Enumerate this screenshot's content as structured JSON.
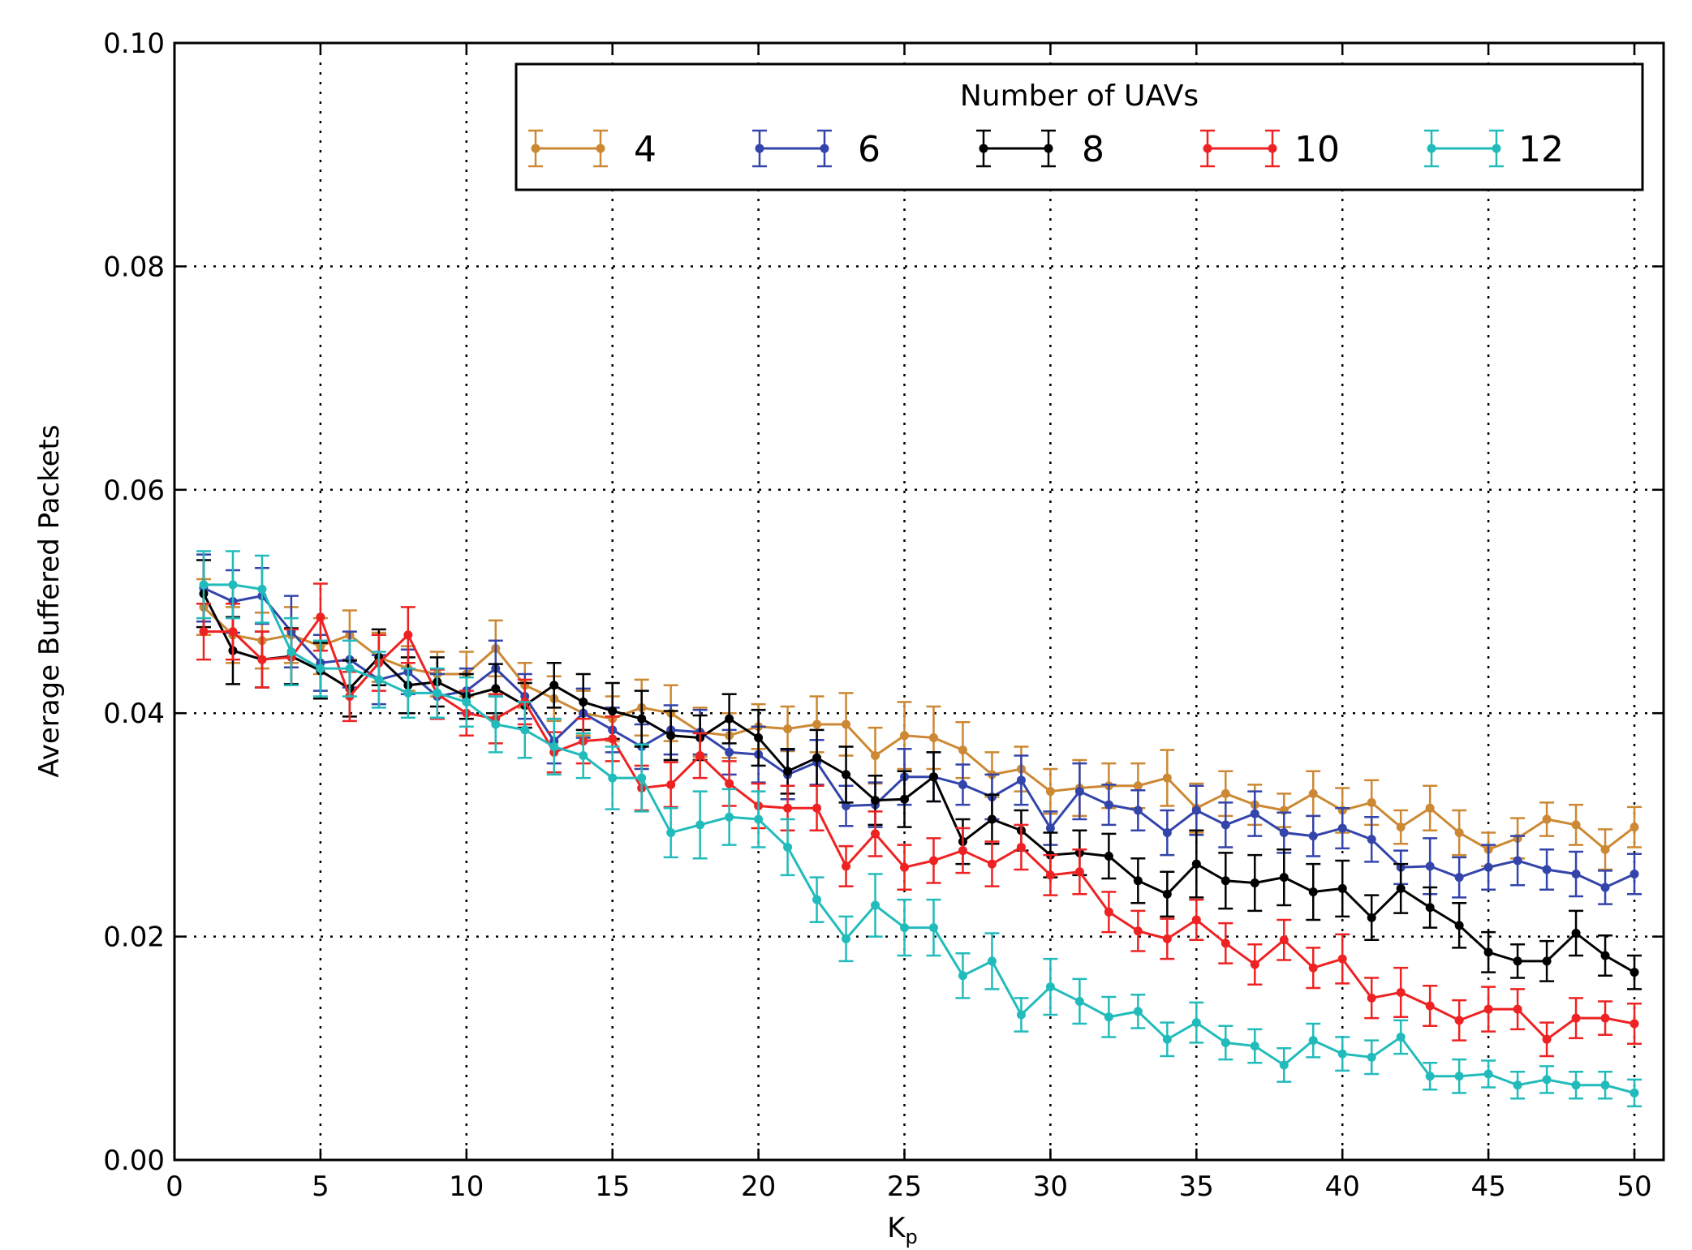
{
  "chart_data": {
    "type": "line",
    "xlabel": "K",
    "xlabel_subscript": "p",
    "ylabel": "Average Buffered Packets",
    "xlim": [
      0,
      51
    ],
    "ylim": [
      0,
      0.1
    ],
    "xticks": [
      0,
      5,
      10,
      15,
      20,
      25,
      30,
      35,
      40,
      45,
      50
    ],
    "yticks": [
      0,
      0.02,
      0.04,
      0.06,
      0.08,
      0.1
    ],
    "xtick_labels": [
      "0",
      "5",
      "10",
      "15",
      "20",
      "25",
      "30",
      "35",
      "40",
      "45",
      "50"
    ],
    "ytick_labels": [
      "0.00",
      "0.02",
      "0.04",
      "0.06",
      "0.08",
      "0.10"
    ],
    "grid": true,
    "legend": {
      "title": "Number of UAVs",
      "placement": "top-right"
    },
    "x": [
      1,
      2,
      3,
      4,
      5,
      6,
      7,
      8,
      9,
      10,
      11,
      12,
      13,
      14,
      15,
      16,
      17,
      18,
      19,
      20,
      21,
      22,
      23,
      24,
      25,
      26,
      27,
      28,
      29,
      30,
      31,
      32,
      33,
      34,
      35,
      36,
      37,
      38,
      39,
      40,
      41,
      42,
      43,
      44,
      45,
      46,
      47,
      48,
      49,
      50
    ],
    "series": [
      {
        "name": "4",
        "color": "#cc8833",
        "values": [
          0.0495,
          0.047,
          0.0465,
          0.047,
          0.046,
          0.047,
          0.045,
          0.044,
          0.0435,
          0.0435,
          0.0458,
          0.0425,
          0.0413,
          0.04,
          0.0395,
          0.0405,
          0.04,
          0.0383,
          0.038,
          0.0388,
          0.0386,
          0.039,
          0.039,
          0.0362,
          0.038,
          0.0378,
          0.0367,
          0.0345,
          0.035,
          0.033,
          0.0333,
          0.0335,
          0.0335,
          0.0342,
          0.0315,
          0.0328,
          0.0318,
          0.0313,
          0.0328,
          0.0313,
          0.032,
          0.0298,
          0.0315,
          0.0293,
          0.0278,
          0.0288,
          0.0305,
          0.03,
          0.0278,
          0.0298
        ],
        "errors": [
          0.0025,
          0.0025,
          0.0025,
          0.0025,
          0.0025,
          0.0022,
          0.0022,
          0.002,
          0.002,
          0.002,
          0.0025,
          0.002,
          0.002,
          0.002,
          0.002,
          0.0025,
          0.0025,
          0.0022,
          0.002,
          0.002,
          0.002,
          0.0025,
          0.0028,
          0.0025,
          0.003,
          0.0028,
          0.0025,
          0.002,
          0.002,
          0.002,
          0.0025,
          0.002,
          0.002,
          0.0025,
          0.0022,
          0.002,
          0.0018,
          0.0015,
          0.002,
          0.002,
          0.002,
          0.0015,
          0.002,
          0.002,
          0.0015,
          0.0018,
          0.0015,
          0.0018,
          0.0018,
          0.0018
        ]
      },
      {
        "name": "6",
        "color": "#3344aa",
        "values": [
          0.0512,
          0.05,
          0.0505,
          0.0473,
          0.0445,
          0.0448,
          0.043,
          0.0437,
          0.0415,
          0.042,
          0.044,
          0.0415,
          0.0375,
          0.04,
          0.0385,
          0.037,
          0.0385,
          0.0383,
          0.0365,
          0.0363,
          0.0345,
          0.0356,
          0.0317,
          0.0318,
          0.0343,
          0.0343,
          0.0336,
          0.0325,
          0.034,
          0.0297,
          0.033,
          0.0318,
          0.0313,
          0.0293,
          0.0313,
          0.03,
          0.031,
          0.0293,
          0.029,
          0.0297,
          0.0287,
          0.0262,
          0.0263,
          0.0253,
          0.0262,
          0.0268,
          0.026,
          0.0256,
          0.0244,
          0.0256
        ],
        "errors": [
          0.003,
          0.0028,
          0.0025,
          0.0032,
          0.0025,
          0.0025,
          0.0022,
          0.002,
          0.002,
          0.002,
          0.0025,
          0.002,
          0.002,
          0.0022,
          0.002,
          0.002,
          0.0022,
          0.002,
          0.002,
          0.0025,
          0.0022,
          0.002,
          0.0018,
          0.002,
          0.0025,
          0.0022,
          0.0018,
          0.002,
          0.0022,
          0.0015,
          0.0025,
          0.0018,
          0.0018,
          0.002,
          0.0022,
          0.002,
          0.002,
          0.0018,
          0.0018,
          0.0018,
          0.002,
          0.0015,
          0.0025,
          0.0018,
          0.002,
          0.0022,
          0.0018,
          0.002,
          0.0015,
          0.0018
        ]
      },
      {
        "name": "8",
        "color": "#000000",
        "values": [
          0.0507,
          0.0456,
          0.0448,
          0.0451,
          0.0438,
          0.0422,
          0.045,
          0.0425,
          0.0428,
          0.0415,
          0.0422,
          0.0407,
          0.0425,
          0.041,
          0.0402,
          0.0395,
          0.038,
          0.0378,
          0.0395,
          0.0378,
          0.0348,
          0.036,
          0.0345,
          0.0322,
          0.0323,
          0.0343,
          0.0285,
          0.0305,
          0.0295,
          0.0273,
          0.0275,
          0.0272,
          0.025,
          0.0238,
          0.0265,
          0.025,
          0.0248,
          0.0253,
          0.024,
          0.0243,
          0.0217,
          0.0243,
          0.0226,
          0.021,
          0.0186,
          0.0178,
          0.0178,
          0.0203,
          0.0183,
          0.0168
        ],
        "errors": [
          0.003,
          0.003,
          0.0025,
          0.0025,
          0.0025,
          0.0025,
          0.0025,
          0.0025,
          0.0022,
          0.002,
          0.0022,
          0.002,
          0.002,
          0.0025,
          0.0025,
          0.0025,
          0.0022,
          0.002,
          0.0022,
          0.0025,
          0.002,
          0.0025,
          0.0025,
          0.0022,
          0.0025,
          0.0022,
          0.002,
          0.0022,
          0.0018,
          0.002,
          0.002,
          0.002,
          0.002,
          0.002,
          0.003,
          0.0025,
          0.0025,
          0.0025,
          0.0025,
          0.0025,
          0.002,
          0.0022,
          0.0018,
          0.002,
          0.0018,
          0.0015,
          0.0018,
          0.002,
          0.0018,
          0.0015
        ]
      },
      {
        "name": "10",
        "color": "#ee2222",
        "values": [
          0.0473,
          0.0473,
          0.0448,
          0.045,
          0.0486,
          0.0415,
          0.0445,
          0.047,
          0.0417,
          0.04,
          0.0395,
          0.041,
          0.0365,
          0.0375,
          0.0377,
          0.0333,
          0.0336,
          0.0362,
          0.0337,
          0.0317,
          0.0315,
          0.0315,
          0.0263,
          0.0292,
          0.0262,
          0.0268,
          0.0277,
          0.0265,
          0.028,
          0.0255,
          0.0258,
          0.0222,
          0.0205,
          0.0198,
          0.0215,
          0.0194,
          0.0175,
          0.0197,
          0.0172,
          0.018,
          0.0145,
          0.015,
          0.0138,
          0.0125,
          0.0135,
          0.0135,
          0.0108,
          0.0127,
          0.0127,
          0.0122
        ],
        "errors": [
          0.0025,
          0.0025,
          0.0025,
          0.0025,
          0.003,
          0.0022,
          0.0025,
          0.0025,
          0.0022,
          0.002,
          0.0022,
          0.002,
          0.0018,
          0.002,
          0.002,
          0.002,
          0.002,
          0.002,
          0.002,
          0.002,
          0.002,
          0.002,
          0.0018,
          0.002,
          0.002,
          0.002,
          0.002,
          0.002,
          0.002,
          0.0018,
          0.002,
          0.0018,
          0.0018,
          0.0018,
          0.0018,
          0.0018,
          0.0018,
          0.0018,
          0.0018,
          0.0022,
          0.0018,
          0.0022,
          0.0018,
          0.0018,
          0.002,
          0.0018,
          0.0015,
          0.0018,
          0.0015,
          0.0018
        ]
      },
      {
        "name": "12",
        "color": "#22bbbb",
        "values": [
          0.0515,
          0.0515,
          0.0511,
          0.0455,
          0.044,
          0.044,
          0.043,
          0.0418,
          0.0418,
          0.041,
          0.039,
          0.0385,
          0.037,
          0.0362,
          0.0342,
          0.0342,
          0.0293,
          0.03,
          0.0307,
          0.0305,
          0.028,
          0.0233,
          0.0198,
          0.0228,
          0.0208,
          0.0208,
          0.0165,
          0.0178,
          0.013,
          0.0155,
          0.0142,
          0.0128,
          0.0133,
          0.0108,
          0.0123,
          0.0105,
          0.0102,
          0.0085,
          0.0107,
          0.0095,
          0.0092,
          0.011,
          0.0075,
          0.0075,
          0.0077,
          0.0067,
          0.0072,
          0.0067,
          0.0067,
          0.006
        ],
        "errors": [
          0.003,
          0.003,
          0.003,
          0.003,
          0.0025,
          0.0025,
          0.0025,
          0.0022,
          0.0022,
          0.0022,
          0.0025,
          0.0025,
          0.0025,
          0.002,
          0.0028,
          0.003,
          0.0022,
          0.003,
          0.0025,
          0.0025,
          0.0025,
          0.002,
          0.002,
          0.0028,
          0.0025,
          0.0025,
          0.002,
          0.0025,
          0.0015,
          0.0025,
          0.002,
          0.0018,
          0.0015,
          0.0015,
          0.0018,
          0.0015,
          0.0015,
          0.0015,
          0.0015,
          0.0015,
          0.0015,
          0.0015,
          0.0012,
          0.0015,
          0.0012,
          0.0012,
          0.0012,
          0.0012,
          0.0012,
          0.0012
        ]
      }
    ]
  }
}
